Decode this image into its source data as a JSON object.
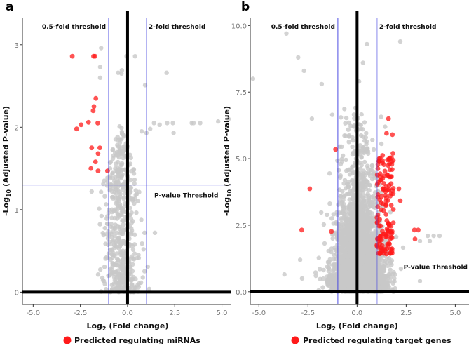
{
  "colors": {
    "background": "#c8c8c8",
    "highlight": "#ff1a1a",
    "threshold": "#3a3ae0",
    "zero_line": "#000000"
  },
  "chart_data": [
    {
      "type": "scatter",
      "panel_letter": "a",
      "xlabel_main": "Log",
      "xlabel_sub": "2",
      "xlabel_rest": " (Fold change)",
      "ylabel_main": "-Log",
      "ylabel_sub": "10",
      "ylabel_rest": " (Adjusted P-value)",
      "xlim": [
        -5.57,
        5.5
      ],
      "ylim": [
        -0.15,
        3.33
      ],
      "xticks": [
        -5.0,
        -2.5,
        0.0,
        2.5,
        5.0
      ],
      "xtick_labels": [
        "-5.0",
        "-2.5",
        "0.0",
        "2.5",
        "5.0"
      ],
      "yticks": [
        0,
        1,
        2,
        3
      ],
      "ytick_labels": [
        "0",
        "1",
        "2",
        "3"
      ],
      "fold_thresholds": [
        -1,
        1
      ],
      "pvalue_threshold": 1.3,
      "annotations": {
        "low_fold": "0.5-fold threshold",
        "high_fold": "2-fold threshold",
        "pvalue": "P-value Threshold"
      },
      "legend": "Predicted regulating miRNAs",
      "highlighted_points": [
        [
          -2.93,
          2.86
        ],
        [
          -1.8,
          2.86
        ],
        [
          -1.72,
          2.86
        ],
        [
          -1.68,
          2.35
        ],
        [
          -1.78,
          2.25
        ],
        [
          -1.82,
          2.2
        ],
        [
          -2.7,
          1.98
        ],
        [
          -2.46,
          2.03
        ],
        [
          -2.07,
          2.06
        ],
        [
          -1.58,
          2.05
        ],
        [
          -1.9,
          1.75
        ],
        [
          -1.47,
          1.75
        ],
        [
          -1.56,
          1.68
        ],
        [
          -1.7,
          1.58
        ],
        [
          -1.94,
          1.5
        ],
        [
          -1.56,
          1.47
        ],
        [
          -1.06,
          1.47
        ]
      ],
      "background_points": [
        [
          -1.4,
          2.96
        ],
        [
          -0.05,
          2.86
        ],
        [
          0.4,
          2.86
        ],
        [
          -1.45,
          2.73
        ],
        [
          -0.5,
          2.66
        ],
        [
          -0.3,
          2.69
        ],
        [
          -0.32,
          2.65
        ],
        [
          2.07,
          2.66
        ],
        [
          0.93,
          2.51
        ],
        [
          -1.45,
          2.6
        ],
        [
          1.4,
          2.05
        ],
        [
          1.7,
          2.03
        ],
        [
          2.1,
          2.05
        ],
        [
          2.4,
          2.05
        ],
        [
          3.4,
          2.05
        ],
        [
          3.5,
          2.05
        ],
        [
          3.85,
          2.05
        ],
        [
          4.8,
          2.07
        ],
        [
          5.35,
          2.1
        ],
        [
          2.44,
          1.93
        ],
        [
          1.2,
          1.98
        ],
        [
          1.0,
          1.93
        ],
        [
          0.75,
          1.95
        ],
        [
          1.45,
          0.72
        ],
        [
          0.9,
          0.72
        ],
        [
          0.85,
          0.52
        ],
        [
          -1.9,
          1.22
        ]
      ],
      "background_cloud": {
        "count": 520,
        "x_mean": -0.35,
        "x_sd": 0.45,
        "y_max": 2.1,
        "seed": 7
      }
    },
    {
      "type": "scatter",
      "panel_letter": "b",
      "xlabel_main": "Log",
      "xlabel_sub": "2",
      "xlabel_rest": " (Fold change)",
      "ylabel_main": "-Log",
      "ylabel_sub": "10",
      "ylabel_rest": " (Adjusted P-value)",
      "xlim": [
        -5.44,
        5.7
      ],
      "ylim": [
        -0.48,
        10.3
      ],
      "xticks": [
        -5.0,
        -2.5,
        0.0,
        2.5,
        5.0
      ],
      "xtick_labels": [
        "-5.0",
        "-2.5",
        "0.0",
        "2.5",
        "5.0"
      ],
      "yticks": [
        0,
        2.5,
        5,
        7.5,
        10
      ],
      "ytick_labels": [
        "0.0",
        "2.5",
        "5.0",
        "7.5",
        "10.0"
      ],
      "fold_thresholds": [
        -0.98,
        1.02
      ],
      "pvalue_threshold": 1.3,
      "annotations": {
        "low_fold": "0.5-fold threshold",
        "high_fold": "2-fold threshold",
        "pvalue": "P-value Threshold"
      },
      "legend": "Predicted regulating target genes",
      "highlighted_points": [
        [
          -2.41,
          3.87
        ],
        [
          -2.82,
          2.32
        ],
        [
          -1.31,
          2.26
        ],
        [
          2.92,
          2.32
        ],
        [
          3.11,
          2.32
        ],
        [
          2.95,
          1.98
        ],
        [
          2.13,
          3.87
        ],
        [
          2.2,
          3.42
        ],
        [
          -1.1,
          5.35
        ],
        [
          1.6,
          6.5
        ],
        [
          1.5,
          5.95
        ],
        [
          1.8,
          5.9
        ],
        [
          1.1,
          4.9
        ]
      ],
      "highlight_cloud": {
        "count": 140,
        "x_min": 1.0,
        "x_max": 1.85,
        "y_min": 1.4,
        "y_max": 5.2,
        "seed": 11
      },
      "background_points": [
        [
          -3.6,
          9.7
        ],
        [
          -2.7,
          8.3
        ],
        [
          -3.0,
          8.8
        ],
        [
          -1.8,
          7.8
        ],
        [
          -2.3,
          6.5
        ],
        [
          -5.3,
          8.0
        ],
        [
          -3.7,
          0.65
        ],
        [
          2.2,
          9.4
        ],
        [
          0.5,
          9.3
        ],
        [
          0.3,
          8.6
        ],
        [
          0.1,
          7.9
        ],
        [
          3.6,
          2.1
        ],
        [
          3.9,
          2.1
        ],
        [
          4.2,
          2.1
        ],
        [
          3.2,
          1.9
        ],
        [
          3.7,
          1.9
        ],
        [
          3.2,
          0.4
        ],
        [
          -2.9,
          1.2
        ],
        [
          -2.1,
          0.6
        ],
        [
          -2.8,
          0.5
        ]
      ],
      "background_cloud": {
        "count": 4200,
        "x_mean": 0.1,
        "x_sd": 0.62,
        "y_scale": 1.35,
        "seed": 3
      }
    }
  ]
}
